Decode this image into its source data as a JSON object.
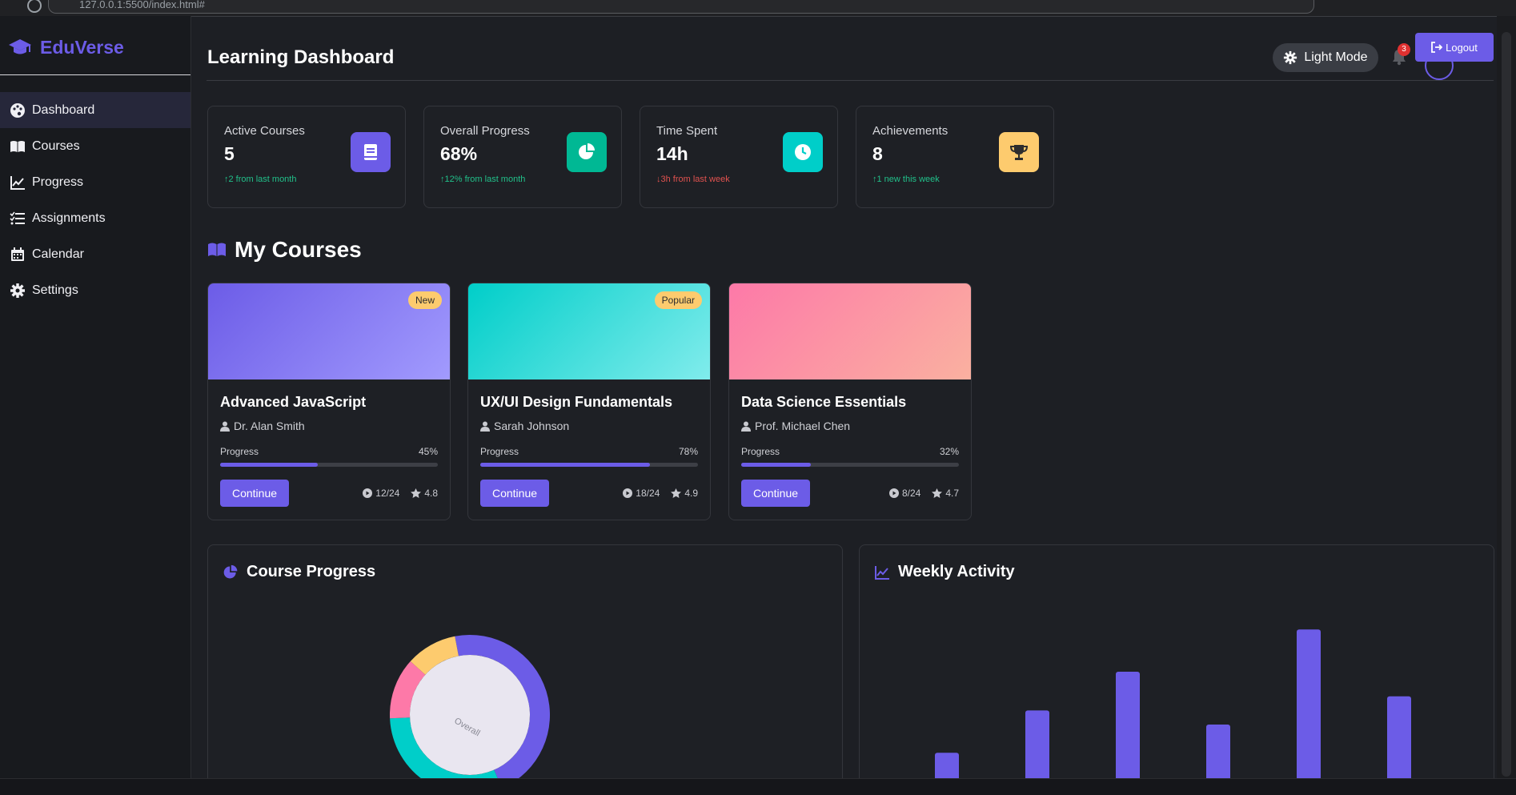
{
  "browser": {
    "url": "127.0.0.1:5500/index.html#"
  },
  "brand": {
    "name": "EduVerse",
    "color": "#6c5ce7"
  },
  "sidebar": {
    "items": [
      {
        "label": "Dashboard",
        "icon": "palette-icon",
        "active": true
      },
      {
        "label": "Courses",
        "icon": "book-open-icon"
      },
      {
        "label": "Progress",
        "icon": "chart-line-icon"
      },
      {
        "label": "Assignments",
        "icon": "tasks-icon"
      },
      {
        "label": "Calendar",
        "icon": "calendar-icon"
      },
      {
        "label": "Settings",
        "icon": "gear-icon"
      }
    ]
  },
  "header": {
    "title": "Learning Dashboard",
    "light_mode_label": "Light Mode",
    "notification_count": "3",
    "logout_label": "Logout"
  },
  "stats": [
    {
      "label": "Active Courses",
      "value": "5",
      "delta": "↑2 from last month",
      "trend": "up",
      "icon": "book-icon",
      "color": "#6c5ce7"
    },
    {
      "label": "Overall Progress",
      "value": "68%",
      "delta": "↑12% from last month",
      "trend": "up",
      "icon": "pie-chart-icon",
      "color": "#00b894"
    },
    {
      "label": "Time Spent",
      "value": "14h",
      "delta": "↓3h from last week",
      "trend": "down",
      "icon": "clock-icon",
      "color": "#00cec9"
    },
    {
      "label": "Achievements",
      "value": "8",
      "delta": "↑1 new this week",
      "trend": "up",
      "icon": "trophy-icon",
      "color": "#fdcb6e"
    }
  ],
  "courses_section": {
    "title": "My Courses"
  },
  "courses": [
    {
      "title": "Advanced JavaScript",
      "instructor": "Dr. Alan Smith",
      "progress_label": "Progress",
      "progress": "45%",
      "progress_value": 45,
      "badge": "New",
      "continue_label": "Continue",
      "lessons": "12/24",
      "rating": "4.8",
      "gradient": [
        "#6c5ce7",
        "#a29bfe"
      ]
    },
    {
      "title": "UX/UI Design Fundamentals",
      "instructor": "Sarah Johnson",
      "progress_label": "Progress",
      "progress": "78%",
      "progress_value": 78,
      "badge": "Popular",
      "continue_label": "Continue",
      "lessons": "18/24",
      "rating": "4.9",
      "gradient": [
        "#00cec9",
        "#81ecec"
      ]
    },
    {
      "title": "Data Science Essentials",
      "instructor": "Prof. Michael Chen",
      "progress_label": "Progress",
      "progress": "32%",
      "progress_value": 32,
      "badge": "",
      "continue_label": "Continue",
      "lessons": "8/24",
      "rating": "4.7",
      "gradient": [
        "#fd79a8",
        "#fab1a0"
      ]
    }
  ],
  "panels": {
    "course_progress_title": "Course Progress",
    "weekly_activity_title": "Weekly Activity",
    "donut_center": "Overall"
  },
  "chart_data": [
    {
      "type": "pie",
      "title": "Course Progress",
      "slices": [
        {
          "value": 45,
          "color": "#6c5ce7"
        },
        {
          "value": 30,
          "color": "#00cec9"
        },
        {
          "value": 12,
          "color": "#fd79a8"
        },
        {
          "value": 10,
          "color": "#fdcb6e"
        }
      ]
    },
    {
      "type": "bar",
      "title": "Weekly Activity",
      "values": [
        1.2,
        2.4,
        3.5,
        2.0,
        4.7,
        2.8
      ],
      "ylim": [
        0,
        5
      ],
      "color": "#6c5ce7"
    }
  ]
}
